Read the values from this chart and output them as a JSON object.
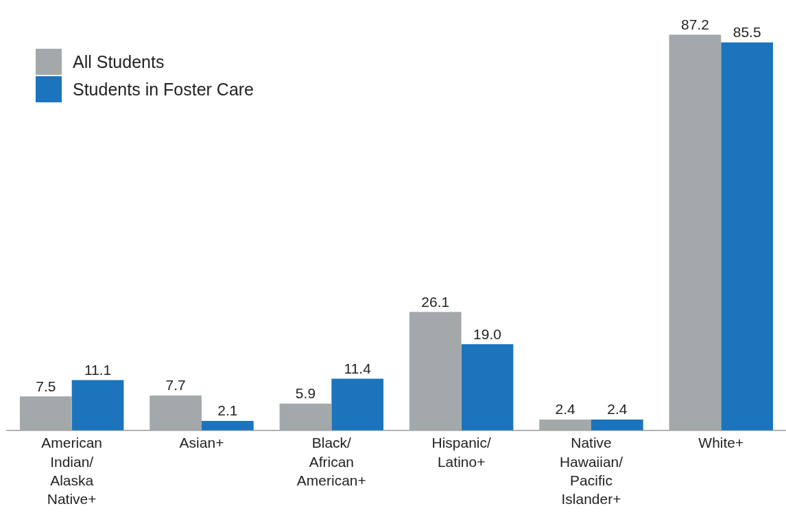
{
  "chart_data": {
    "type": "bar",
    "categories": [
      "American Indian/Alaska Native+",
      "Asian+",
      "Black/African American+",
      "Hispanic/Latino+",
      "Native Hawaiian/Pacific Islander+",
      "White+"
    ],
    "series": [
      {
        "name": "All Students",
        "color": "#a3a8ab",
        "values": [
          7.5,
          7.7,
          5.9,
          26.1,
          2.4,
          87.2
        ],
        "value_labels": [
          "7.5",
          "7.7",
          "5.9",
          "26.1",
          "2.4",
          "87.2"
        ]
      },
      {
        "name": "Students in Foster Care",
        "color": "#1b74bc",
        "values": [
          11.1,
          2.1,
          11.4,
          19.0,
          2.4,
          85.5
        ],
        "value_labels": [
          "11.1",
          "2.1",
          "11.4",
          "19.0",
          "2.4",
          "85.5"
        ]
      }
    ],
    "grid": false,
    "legend": "top left"
  }
}
